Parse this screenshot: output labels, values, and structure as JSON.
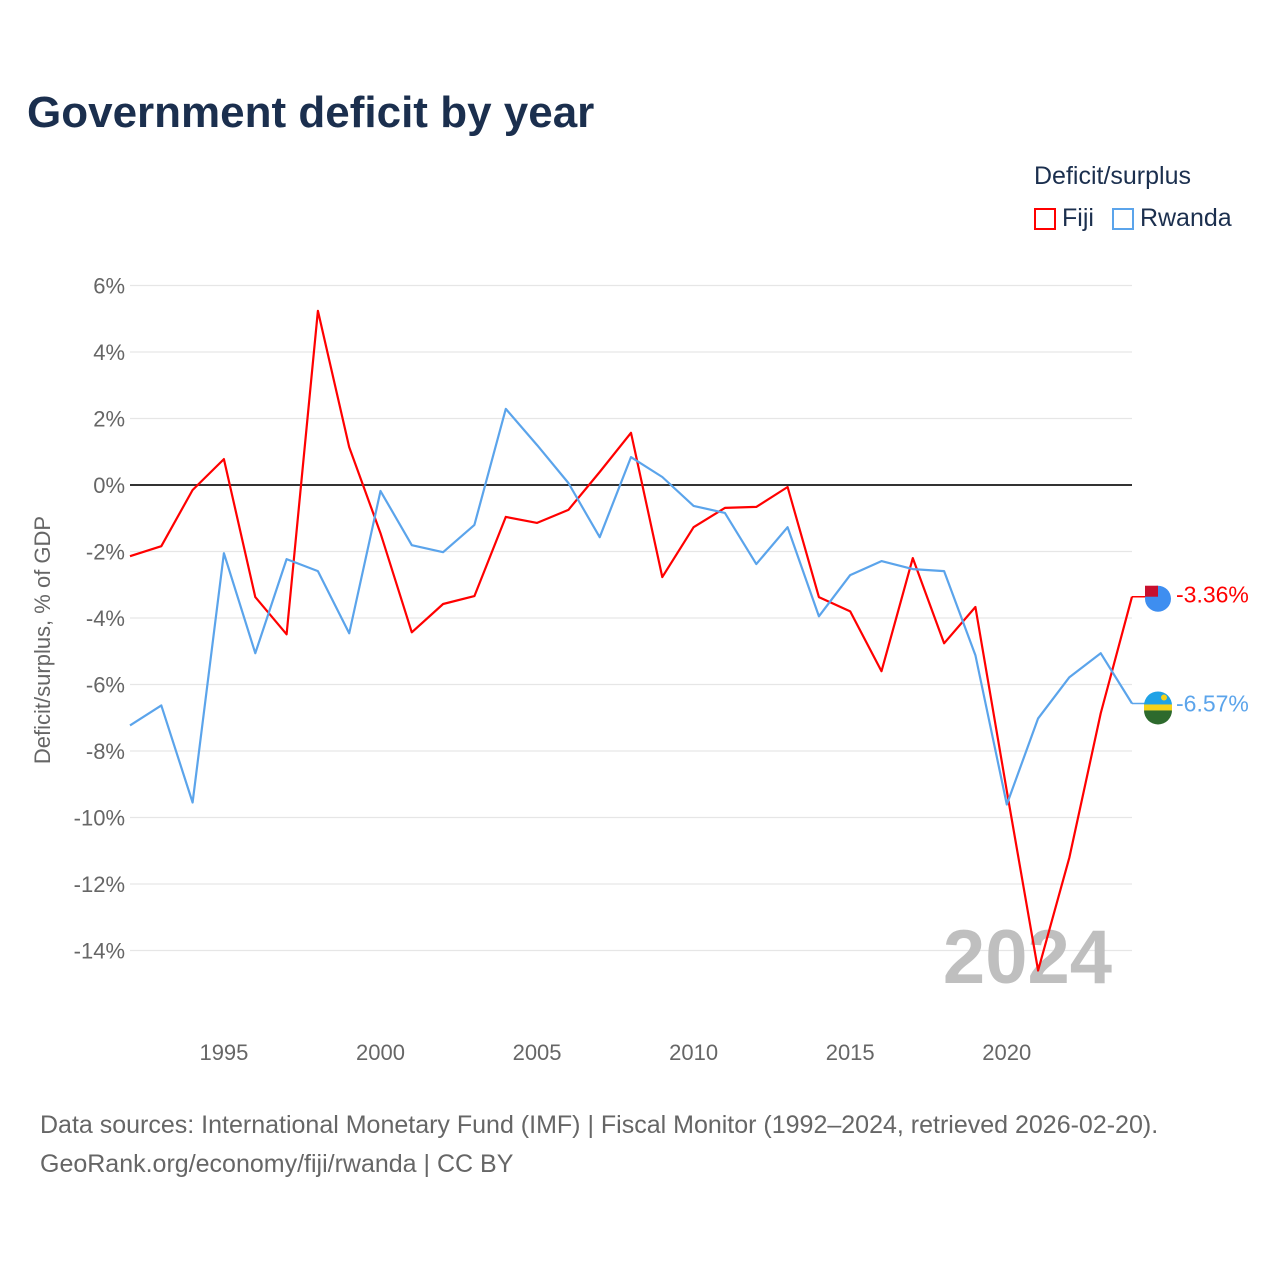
{
  "title": "Government deficit by year",
  "legend": {
    "title": "Deficit/surplus",
    "items": [
      {
        "name": "Fiji",
        "color": "#ff0000"
      },
      {
        "name": "Rwanda",
        "color": "#5ba4eb"
      }
    ]
  },
  "footer": {
    "line1": "Data sources: International Monetary Fund (IMF) | Fiscal Monitor (1992–2024, retrieved 2026-02-20).",
    "line2": "GeoRank.org/economy/fiji/rwanda | CC BY"
  },
  "chart_data": {
    "type": "line",
    "title": "Government deficit by year",
    "xlabel": "",
    "ylabel": "Deficit/surplus, % of GDP",
    "xlim": [
      1992,
      2024
    ],
    "ylim": [
      -16,
      6.5
    ],
    "yticks": [
      6,
      4,
      2,
      0,
      -2,
      -4,
      -6,
      -8,
      -10,
      -12,
      -14
    ],
    "ytick_labels": [
      "6%",
      "4%",
      "2%",
      "0%",
      "-2%",
      "-4%",
      "-6%",
      "-8%",
      "-10%",
      "-12%",
      "-14%"
    ],
    "xticks": [
      1995,
      2000,
      2005,
      2010,
      2015,
      2020
    ],
    "xtick_labels": [
      "1995",
      "2000",
      "2005",
      "2010",
      "2015",
      "2020"
    ],
    "year_watermark": "2024",
    "grid": true,
    "legend_position": "top-right",
    "x": [
      1992,
      1993,
      1994,
      1995,
      1996,
      1997,
      1998,
      1999,
      2000,
      2001,
      2002,
      2003,
      2004,
      2005,
      2006,
      2007,
      2008,
      2009,
      2010,
      2011,
      2012,
      2013,
      2014,
      2015,
      2016,
      2017,
      2018,
      2019,
      2020,
      2021,
      2022,
      2023,
      2024
    ],
    "series": [
      {
        "name": "Fiji",
        "color": "#ff0000",
        "end_label": "-3.36%",
        "values": [
          -2.14,
          -1.84,
          -0.15,
          0.78,
          -3.37,
          -4.49,
          5.24,
          1.14,
          -1.45,
          -4.43,
          -3.58,
          -3.34,
          -0.96,
          -1.14,
          -0.75,
          0.39,
          1.57,
          -2.77,
          -1.27,
          -0.69,
          -0.66,
          -0.06,
          -3.37,
          -3.8,
          -5.6,
          -2.2,
          -4.76,
          -3.67,
          -9.2,
          -14.6,
          -11.2,
          -6.87,
          -3.36
        ]
      },
      {
        "name": "Rwanda",
        "color": "#5ba4eb",
        "end_label": "-6.57%",
        "values": [
          -7.23,
          -6.63,
          -9.55,
          -2.05,
          -5.06,
          -2.23,
          -2.59,
          -4.46,
          -0.18,
          -1.81,
          -2.02,
          -1.2,
          2.29,
          1.2,
          0.06,
          -1.57,
          0.84,
          0.24,
          -0.63,
          -0.84,
          -2.38,
          -1.27,
          -3.95,
          -2.71,
          -2.29,
          -2.53,
          -2.59,
          -5.12,
          -9.61,
          -7.02,
          -5.78,
          -5.06,
          -6.57
        ]
      }
    ]
  }
}
